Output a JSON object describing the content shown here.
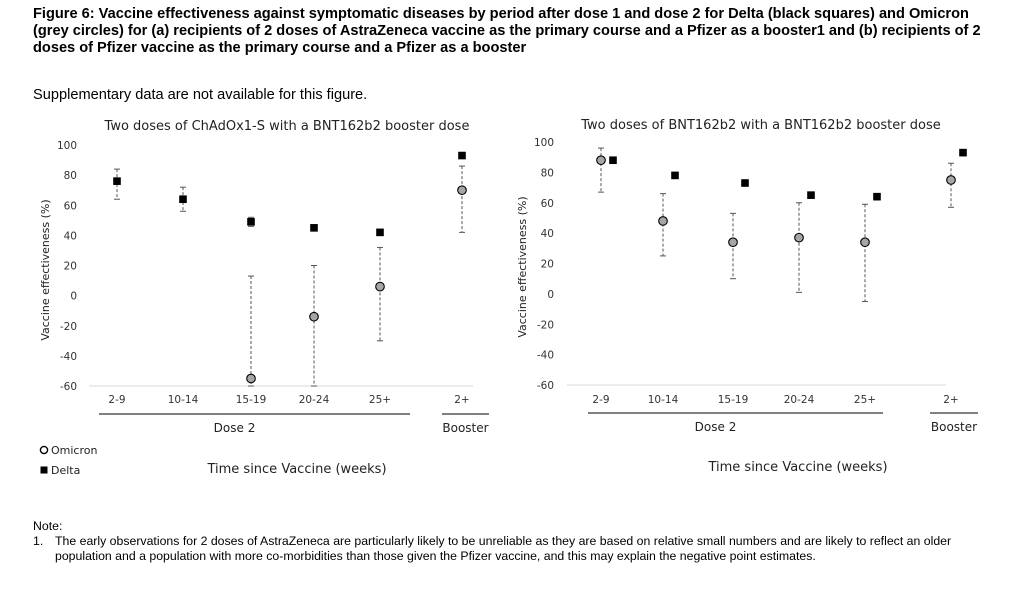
{
  "figure_title": "Figure 6: Vaccine effectiveness against symptomatic diseases by period after dose 1 and dose 2 for Delta (black squares) and Omicron (grey circles) for (a) recipients of 2 doses of AstraZeneca vaccine as the primary course and a Pfizer as a booster1 and (b) recipients of 2 doses of Pfizer vaccine as the primary course and a Pfizer as a booster",
  "supplementary_text": "Supplementary data are not available for this figure.",
  "legend": {
    "omicron": "Omicron",
    "delta": "Delta"
  },
  "colors": {
    "omicron_fill": "#a6a6a6",
    "delta_fill": "#000000",
    "axis": "#d9d9d9",
    "error_bar": "#555555"
  },
  "note": {
    "heading": "Note:",
    "items": [
      {
        "num": "1.",
        "text": "The early observations for 2 doses of AstraZeneca are particularly likely to be unreliable as they are based on relative small numbers and are likely to reflect an older population and a population with more co-morbidities than those given the Pfizer vaccine, and this may explain the negative point estimates."
      }
    ]
  },
  "chart_data": [
    {
      "type": "scatter",
      "title": "Two doses of ChAdOx1-S with a BNT162b2 booster dose",
      "ylabel": "Vaccine effectiveness (%)",
      "xlabel": "Time since Vaccine (weeks)",
      "ylim": [
        -60,
        100
      ],
      "yticks": [
        100,
        80,
        60,
        40,
        20,
        0,
        -20,
        -40,
        -60
      ],
      "categories": [
        "2-9",
        "10-14",
        "15-19",
        "20-24",
        "25+",
        "2+"
      ],
      "groups": [
        {
          "label": "Dose 2",
          "from": 0,
          "to": 4
        },
        {
          "label": "Booster",
          "from": 5,
          "to": 5
        }
      ],
      "grid": false,
      "series": [
        {
          "name": "Omicron",
          "marker": "circle",
          "values": [
            null,
            null,
            -55,
            -14,
            6,
            70
          ],
          "lower": [
            null,
            null,
            -60,
            -60,
            -30,
            42
          ],
          "upper": [
            null,
            null,
            13,
            20,
            32,
            86
          ]
        },
        {
          "name": "Delta",
          "marker": "square",
          "values": [
            76,
            64,
            49,
            45,
            42,
            93
          ],
          "lower": [
            64,
            56,
            46,
            null,
            null,
            null
          ],
          "upper": [
            84,
            72,
            52,
            null,
            null,
            null
          ]
        }
      ]
    },
    {
      "type": "scatter",
      "title": "Two doses of BNT162b2 with a BNT162b2 booster dose",
      "ylabel": "Vaccine effectiveness (%)",
      "xlabel": "Time since Vaccine (weeks)",
      "ylim": [
        -60,
        100
      ],
      "yticks": [
        100,
        80,
        60,
        40,
        20,
        0,
        -20,
        -40,
        -60
      ],
      "categories": [
        "2-9",
        "10-14",
        "15-19",
        "20-24",
        "25+",
        "2+"
      ],
      "groups": [
        {
          "label": "Dose 2",
          "from": 0,
          "to": 4
        },
        {
          "label": "Booster",
          "from": 5,
          "to": 5
        }
      ],
      "grid": false,
      "series": [
        {
          "name": "Omicron",
          "marker": "circle",
          "values": [
            88,
            48,
            34,
            37,
            34,
            75
          ],
          "lower": [
            67,
            25,
            10,
            1,
            -5,
            57
          ],
          "upper": [
            96,
            66,
            53,
            60,
            59,
            86
          ]
        },
        {
          "name": "Delta",
          "marker": "square",
          "values": [
            88,
            78,
            73,
            65,
            64,
            93
          ],
          "lower": [
            null,
            null,
            null,
            null,
            null,
            null
          ],
          "upper": [
            null,
            null,
            null,
            null,
            null,
            null
          ]
        }
      ]
    }
  ]
}
